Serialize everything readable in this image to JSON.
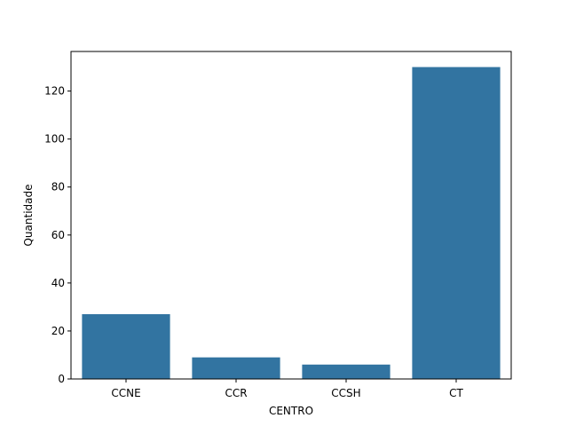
{
  "chart_data": {
    "type": "bar",
    "categories": [
      "CCNE",
      "CCR",
      "CCSH",
      "CT"
    ],
    "values": [
      27,
      9,
      6,
      130
    ],
    "title": "",
    "xlabel": "CENTRO",
    "ylabel": "Quantidade",
    "ylim": [
      0,
      136.5
    ],
    "yticks": [
      0,
      20,
      40,
      60,
      80,
      100,
      120
    ],
    "grid": false,
    "colors": {
      "bar": "#3274a1",
      "axis": "#000000",
      "background": "#ffffff"
    }
  }
}
